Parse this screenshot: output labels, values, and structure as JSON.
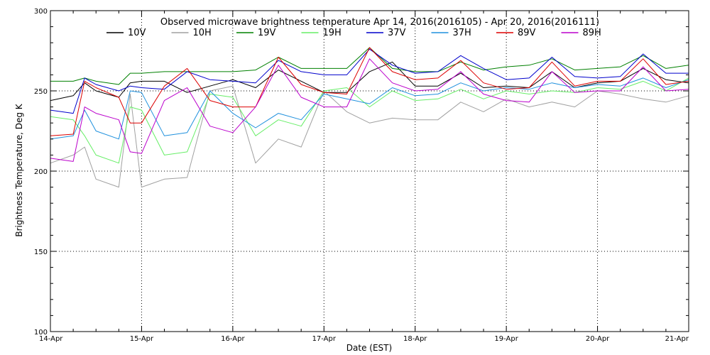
{
  "chart_data": {
    "type": "line",
    "title": "Observed microwave brightness temperature Apr 14, 2016(2016105) - Apr 20, 2016(2016111)",
    "xlabel": "Date (EST)",
    "ylabel": "Brightness Temperature, Deg K",
    "ylim": [
      100,
      300
    ],
    "yticks": [
      100,
      150,
      200,
      250,
      300
    ],
    "xlim": [
      "2016-04-14",
      "2016-04-21"
    ],
    "xtick_labels": [
      "14-Apr",
      "15-Apr",
      "16-Apr",
      "17-Apr",
      "18-Apr",
      "19-Apr",
      "20-Apr",
      "21-Apr"
    ],
    "grid": true,
    "legend_position": "top",
    "series": [
      {
        "name": "10V",
        "color": "#000000",
        "x": [
          "2016-04-14 00:00",
          "2016-04-14 06:00",
          "2016-04-14 09:00",
          "2016-04-14 12:00",
          "2016-04-14 18:00",
          "2016-04-14 21:00",
          "2016-04-15 00:00",
          "2016-04-15 06:00",
          "2016-04-15 12:00",
          "2016-04-15 18:00",
          "2016-04-16 00:00",
          "2016-04-16 06:00",
          "2016-04-16 12:00",
          "2016-04-16 18:00",
          "2016-04-17 00:00",
          "2016-04-17 06:00",
          "2016-04-17 12:00",
          "2016-04-17 18:00",
          "2016-04-18 00:00",
          "2016-04-18 06:00",
          "2016-04-18 12:00",
          "2016-04-18 18:00",
          "2016-04-19 00:00",
          "2016-04-19 06:00",
          "2016-04-19 12:00",
          "2016-04-19 18:00",
          "2016-04-20 00:00",
          "2016-04-20 06:00",
          "2016-04-20 12:00",
          "2016-04-20 18:00",
          "2016-04-21 00:00"
        ],
        "values": [
          244,
          247,
          255,
          250,
          246,
          255,
          256,
          256,
          249,
          253,
          257,
          252,
          263,
          256,
          249,
          249,
          262,
          268,
          253,
          253,
          261,
          252,
          253,
          252,
          262,
          252,
          255,
          256,
          264,
          257,
          255
        ]
      },
      {
        "name": "10H",
        "color": "#a0a0a0",
        "x": [
          "2016-04-14 00:00",
          "2016-04-14 06:00",
          "2016-04-14 09:00",
          "2016-04-14 12:00",
          "2016-04-14 18:00",
          "2016-04-14 21:00",
          "2016-04-15 00:00",
          "2016-04-15 06:00",
          "2016-04-15 12:00",
          "2016-04-15 18:00",
          "2016-04-16 00:00",
          "2016-04-16 06:00",
          "2016-04-16 12:00",
          "2016-04-16 18:00",
          "2016-04-17 00:00",
          "2016-04-17 06:00",
          "2016-04-17 12:00",
          "2016-04-17 18:00",
          "2016-04-18 00:00",
          "2016-04-18 06:00",
          "2016-04-18 12:00",
          "2016-04-18 18:00",
          "2016-04-19 00:00",
          "2016-04-19 06:00",
          "2016-04-19 12:00",
          "2016-04-19 18:00",
          "2016-04-20 00:00",
          "2016-04-20 06:00",
          "2016-04-20 12:00",
          "2016-04-20 18:00",
          "2016-04-21 00:00"
        ],
        "values": [
          205,
          210,
          215,
          195,
          190,
          248,
          190,
          195,
          196,
          250,
          253,
          205,
          220,
          215,
          250,
          237,
          230,
          233,
          232,
          232,
          243,
          237,
          245,
          240,
          243,
          240,
          250,
          248,
          245,
          243,
          247
        ]
      },
      {
        "name": "19V",
        "color": "#008000",
        "x": [
          "2016-04-14 00:00",
          "2016-04-14 06:00",
          "2016-04-14 09:00",
          "2016-04-14 12:00",
          "2016-04-14 18:00",
          "2016-04-14 21:00",
          "2016-04-15 00:00",
          "2016-04-15 06:00",
          "2016-04-15 12:00",
          "2016-04-15 18:00",
          "2016-04-16 00:00",
          "2016-04-16 06:00",
          "2016-04-16 12:00",
          "2016-04-16 18:00",
          "2016-04-17 00:00",
          "2016-04-17 06:00",
          "2016-04-17 12:00",
          "2016-04-17 18:00",
          "2016-04-18 00:00",
          "2016-04-18 06:00",
          "2016-04-18 12:00",
          "2016-04-18 18:00",
          "2016-04-19 00:00",
          "2016-04-19 06:00",
          "2016-04-19 12:00",
          "2016-04-19 18:00",
          "2016-04-20 00:00",
          "2016-04-20 06:00",
          "2016-04-20 12:00",
          "2016-04-20 18:00",
          "2016-04-21 00:00"
        ],
        "values": [
          256,
          256,
          258,
          256,
          254,
          261,
          261,
          262,
          262,
          262,
          262,
          263,
          271,
          264,
          264,
          264,
          277,
          264,
          262,
          262,
          268,
          263,
          265,
          266,
          270,
          263,
          264,
          265,
          272,
          264,
          266
        ]
      },
      {
        "name": "19H",
        "color": "#66ee66",
        "x": [
          "2016-04-14 00:00",
          "2016-04-14 06:00",
          "2016-04-14 09:00",
          "2016-04-14 12:00",
          "2016-04-14 18:00",
          "2016-04-14 21:00",
          "2016-04-15 00:00",
          "2016-04-15 06:00",
          "2016-04-15 12:00",
          "2016-04-15 18:00",
          "2016-04-16 00:00",
          "2016-04-16 06:00",
          "2016-04-16 12:00",
          "2016-04-16 18:00",
          "2016-04-17 00:00",
          "2016-04-17 06:00",
          "2016-04-17 12:00",
          "2016-04-17 18:00",
          "2016-04-18 00:00",
          "2016-04-18 06:00",
          "2016-04-18 12:00",
          "2016-04-18 18:00",
          "2016-04-19 00:00",
          "2016-04-19 06:00",
          "2016-04-19 12:00",
          "2016-04-19 18:00",
          "2016-04-20 00:00",
          "2016-04-20 06:00",
          "2016-04-20 12:00",
          "2016-04-20 18:00",
          "2016-04-21 00:00"
        ],
        "values": [
          234,
          232,
          222,
          210,
          205,
          240,
          238,
          210,
          212,
          248,
          246,
          222,
          232,
          228,
          250,
          252,
          240,
          250,
          244,
          245,
          251,
          245,
          250,
          248,
          250,
          249,
          252,
          251,
          256,
          250,
          258
        ]
      },
      {
        "name": "37V",
        "color": "#0000cc",
        "x": [
          "2016-04-14 00:00",
          "2016-04-14 06:00",
          "2016-04-14 09:00",
          "2016-04-14 12:00",
          "2016-04-14 18:00",
          "2016-04-14 21:00",
          "2016-04-15 00:00",
          "2016-04-15 06:00",
          "2016-04-15 12:00",
          "2016-04-15 18:00",
          "2016-04-16 00:00",
          "2016-04-16 06:00",
          "2016-04-16 12:00",
          "2016-04-16 18:00",
          "2016-04-17 00:00",
          "2016-04-17 06:00",
          "2016-04-17 12:00",
          "2016-04-17 18:00",
          "2016-04-18 00:00",
          "2016-04-18 06:00",
          "2016-04-18 12:00",
          "2016-04-18 18:00",
          "2016-04-19 00:00",
          "2016-04-19 06:00",
          "2016-04-19 12:00",
          "2016-04-19 18:00",
          "2016-04-20 00:00",
          "2016-04-20 06:00",
          "2016-04-20 12:00",
          "2016-04-20 18:00",
          "2016-04-21 00:00"
        ],
        "values": [
          238,
          236,
          258,
          254,
          250,
          253,
          252,
          251,
          262,
          257,
          256,
          255,
          269,
          262,
          260,
          260,
          276,
          266,
          261,
          262,
          272,
          264,
          257,
          258,
          271,
          259,
          258,
          259,
          273,
          261,
          261
        ]
      },
      {
        "name": "37H",
        "color": "#1e90dd",
        "x": [
          "2016-04-14 00:00",
          "2016-04-14 06:00",
          "2016-04-14 09:00",
          "2016-04-14 12:00",
          "2016-04-14 18:00",
          "2016-04-14 21:00",
          "2016-04-15 00:00",
          "2016-04-15 06:00",
          "2016-04-15 12:00",
          "2016-04-15 18:00",
          "2016-04-16 00:00",
          "2016-04-16 06:00",
          "2016-04-16 12:00",
          "2016-04-16 18:00",
          "2016-04-17 00:00",
          "2016-04-17 06:00",
          "2016-04-17 12:00",
          "2016-04-17 18:00",
          "2016-04-18 00:00",
          "2016-04-18 06:00",
          "2016-04-18 12:00",
          "2016-04-18 18:00",
          "2016-04-19 00:00",
          "2016-04-19 06:00",
          "2016-04-19 12:00",
          "2016-04-19 18:00",
          "2016-04-20 00:00",
          "2016-04-20 06:00",
          "2016-04-20 12:00",
          "2016-04-20 18:00",
          "2016-04-21 00:00"
        ],
        "values": [
          220,
          222,
          238,
          225,
          220,
          250,
          249,
          222,
          224,
          250,
          236,
          227,
          236,
          232,
          248,
          245,
          242,
          252,
          247,
          248,
          255,
          250,
          252,
          251,
          255,
          252,
          254,
          253,
          258,
          252,
          257
        ]
      },
      {
        "name": "89V",
        "color": "#dd0000",
        "x": [
          "2016-04-14 00:00",
          "2016-04-14 06:00",
          "2016-04-14 09:00",
          "2016-04-14 12:00",
          "2016-04-14 18:00",
          "2016-04-14 21:00",
          "2016-04-15 00:00",
          "2016-04-15 06:00",
          "2016-04-15 12:00",
          "2016-04-15 18:00",
          "2016-04-16 00:00",
          "2016-04-16 06:00",
          "2016-04-16 12:00",
          "2016-04-16 18:00",
          "2016-04-17 00:00",
          "2016-04-17 06:00",
          "2016-04-17 12:00",
          "2016-04-17 18:00",
          "2016-04-18 00:00",
          "2016-04-18 06:00",
          "2016-04-18 12:00",
          "2016-04-18 18:00",
          "2016-04-19 00:00",
          "2016-04-19 06:00",
          "2016-04-19 12:00",
          "2016-04-19 18:00",
          "2016-04-20 00:00",
          "2016-04-20 06:00",
          "2016-04-20 12:00",
          "2016-04-20 18:00",
          "2016-04-21 00:00"
        ],
        "values": [
          222,
          223,
          256,
          252,
          246,
          230,
          230,
          253,
          264,
          244,
          240,
          240,
          271,
          254,
          249,
          248,
          277,
          262,
          257,
          258,
          269,
          255,
          251,
          252,
          268,
          253,
          256,
          256,
          270,
          254,
          256
        ]
      },
      {
        "name": "89H",
        "color": "#bb00cc",
        "x": [
          "2016-04-14 00:00",
          "2016-04-14 06:00",
          "2016-04-14 09:00",
          "2016-04-14 12:00",
          "2016-04-14 18:00",
          "2016-04-14 21:00",
          "2016-04-15 00:00",
          "2016-04-15 06:00",
          "2016-04-15 12:00",
          "2016-04-15 18:00",
          "2016-04-16 00:00",
          "2016-04-16 06:00",
          "2016-04-16 12:00",
          "2016-04-16 18:00",
          "2016-04-17 00:00",
          "2016-04-17 06:00",
          "2016-04-17 12:00",
          "2016-04-17 18:00",
          "2016-04-18 00:00",
          "2016-04-18 06:00",
          "2016-04-18 12:00",
          "2016-04-18 18:00",
          "2016-04-19 00:00",
          "2016-04-19 06:00",
          "2016-04-19 12:00",
          "2016-04-19 18:00",
          "2016-04-20 00:00",
          "2016-04-20 06:00",
          "2016-04-20 12:00",
          "2016-04-20 18:00",
          "2016-04-21 00:00"
        ],
        "values": [
          208,
          206,
          240,
          236,
          232,
          212,
          211,
          244,
          252,
          228,
          224,
          240,
          266,
          246,
          240,
          240,
          270,
          255,
          250,
          251,
          262,
          248,
          244,
          243,
          262,
          249,
          250,
          250,
          265,
          250,
          251
        ]
      }
    ]
  }
}
